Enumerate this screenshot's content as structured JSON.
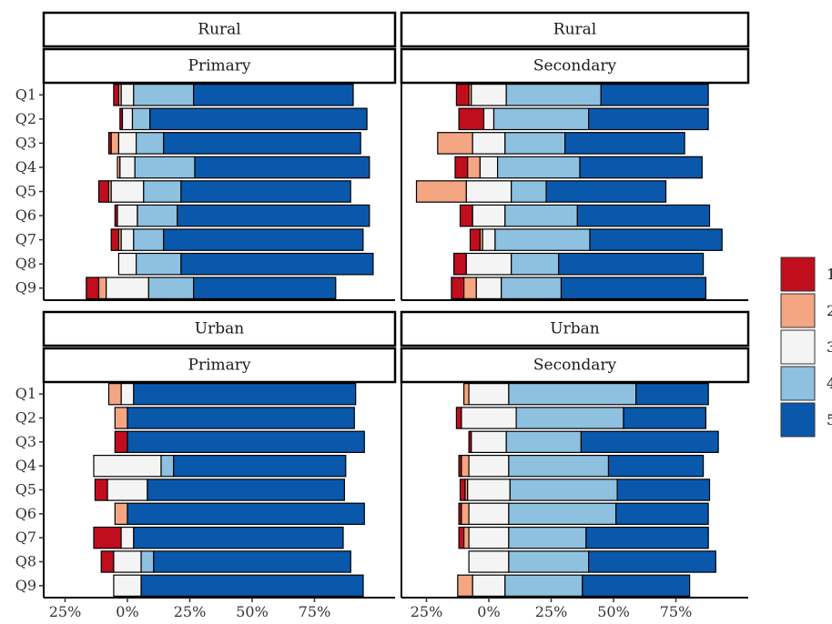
{
  "chart_data": {
    "type": "bar",
    "subtype": "diverging-stacked-bar-faceted",
    "questions": [
      "Q1",
      "Q2",
      "Q3",
      "Q4",
      "Q5",
      "Q6",
      "Q7",
      "Q8",
      "Q9"
    ],
    "x_ticks": [
      -25,
      0,
      25,
      50,
      75
    ],
    "x_tick_labels": [
      "25%",
      "0%",
      "25%",
      "50%",
      "75%"
    ],
    "legend": {
      "placement": "right",
      "levels": [
        "1",
        "2",
        "3",
        "4",
        "5"
      ],
      "labels": [
        "1",
        "2",
        "3",
        "4",
        "5"
      ],
      "colors": [
        "#C10E1E",
        "#F4A582",
        "#F4F4F4",
        "#8EC0E0",
        "#0A58AB"
      ]
    },
    "panels": [
      {
        "id": "rural-primary",
        "strips": [
          "Rural",
          "Primary"
        ],
        "xlim": [
          -33,
          97
        ],
        "series": [
          {
            "q": "Q1",
            "p": [
              2,
              1,
              5,
              24,
              64
            ]
          },
          {
            "q": "Q2",
            "p": [
              1,
              0,
              4,
              7,
              87
            ]
          },
          {
            "q": "Q3",
            "p": [
              1,
              3,
              7,
              11,
              79
            ]
          },
          {
            "q": "Q4",
            "p": [
              0,
              1,
              6,
              24,
              70
            ]
          },
          {
            "q": "Q5",
            "p": [
              4,
              1,
              13,
              15,
              68
            ]
          },
          {
            "q": "Q6",
            "p": [
              1,
              0,
              8,
              16,
              77
            ]
          },
          {
            "q": "Q7",
            "p": [
              3,
              1,
              5,
              12,
              80
            ]
          },
          {
            "q": "Q8",
            "p": [
              0,
              0,
              7,
              18,
              77
            ]
          },
          {
            "q": "Q9",
            "p": [
              5,
              3,
              17,
              18,
              57
            ]
          }
        ]
      },
      {
        "id": "rural-secondary",
        "strips": [
          "Rural",
          "Secondary"
        ],
        "xlim": [
          -33,
          97
        ],
        "series": [
          {
            "q": "Q1",
            "p": [
              5,
              1,
              14,
              38,
              43
            ]
          },
          {
            "q": "Q2",
            "p": [
              10,
              0,
              4,
              38,
              48
            ]
          },
          {
            "q": "Q3",
            "p": [
              0,
              14,
              13,
              24,
              48
            ]
          },
          {
            "q": "Q4",
            "p": [
              5,
              5,
              7,
              33,
              49
            ]
          },
          {
            "q": "Q5",
            "p": [
              0,
              20,
              18,
              14,
              48
            ]
          },
          {
            "q": "Q6",
            "p": [
              5,
              0,
              13,
              29,
              53
            ]
          },
          {
            "q": "Q7",
            "p": [
              4,
              1,
              5,
              38,
              53
            ]
          },
          {
            "q": "Q8",
            "p": [
              5,
              0,
              18,
              19,
              58
            ]
          },
          {
            "q": "Q9",
            "p": [
              5,
              5,
              10,
              24,
              58
            ]
          }
        ]
      },
      {
        "id": "urban-primary",
        "strips": [
          "Urban",
          "Primary"
        ],
        "xlim": [
          -33,
          97
        ],
        "series": [
          {
            "q": "Q1",
            "p": [
              0,
              5,
              5,
              0,
              89
            ]
          },
          {
            "q": "Q2",
            "p": [
              0,
              5,
              0,
              0,
              91
            ]
          },
          {
            "q": "Q3",
            "p": [
              5,
              0,
              0,
              0,
              95
            ]
          },
          {
            "q": "Q4",
            "p": [
              0,
              0,
              27,
              5,
              69
            ]
          },
          {
            "q": "Q5",
            "p": [
              5,
              0,
              16,
              0,
              79
            ]
          },
          {
            "q": "Q6",
            "p": [
              0,
              5,
              0,
              0,
              95
            ]
          },
          {
            "q": "Q7",
            "p": [
              11,
              0,
              5,
              0,
              84
            ]
          },
          {
            "q": "Q8",
            "p": [
              5,
              0,
              11,
              5,
              79
            ]
          },
          {
            "q": "Q9",
            "p": [
              0,
              0,
              11,
              0,
              89
            ]
          }
        ]
      },
      {
        "id": "urban-secondary",
        "strips": [
          "Urban",
          "Secondary"
        ],
        "xlim": [
          -33,
          97
        ],
        "series": [
          {
            "q": "Q1",
            "p": [
              0,
              2,
              16,
              51,
              29
            ]
          },
          {
            "q": "Q2",
            "p": [
              2,
              0,
              22,
              43,
              33
            ]
          },
          {
            "q": "Q3",
            "p": [
              1,
              0,
              14,
              30,
              55
            ]
          },
          {
            "q": "Q4",
            "p": [
              1,
              3,
              16,
              40,
              38
            ]
          },
          {
            "q": "Q5",
            "p": [
              2,
              1,
              17,
              43,
              37
            ]
          },
          {
            "q": "Q6",
            "p": [
              1,
              3,
              16,
              43,
              37
            ]
          },
          {
            "q": "Q7",
            "p": [
              2,
              2,
              16,
              31,
              49
            ]
          },
          {
            "q": "Q8",
            "p": [
              0,
              0,
              16,
              32,
              51
            ]
          },
          {
            "q": "Q9",
            "p": [
              0,
              6,
              13,
              31,
              43
            ]
          }
        ]
      }
    ]
  }
}
